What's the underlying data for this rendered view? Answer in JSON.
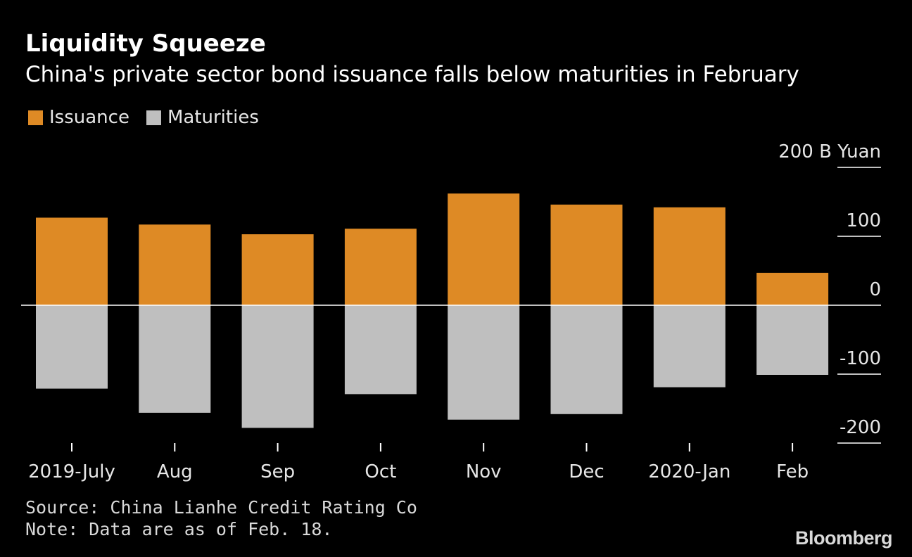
{
  "chart_data": {
    "type": "bar",
    "title": "Liquidity Squeeze",
    "subtitle": "China's private sector bond issuance falls below maturities in February",
    "categories": [
      "2019-July",
      "Aug",
      "Sep",
      "Oct",
      "Nov",
      "Dec",
      "2020-Jan",
      "Feb"
    ],
    "series": [
      {
        "name": "Issuance",
        "color": "#de8a25",
        "values": [
          127,
          117,
          103,
          111,
          162,
          146,
          142,
          47
        ]
      },
      {
        "name": "Maturities",
        "color": "#bfbfbf",
        "values": [
          -121,
          -156,
          -178,
          -129,
          -166,
          -158,
          -119,
          -101
        ]
      }
    ],
    "ylim": [
      -200,
      200
    ],
    "yticks": [
      {
        "value": 200,
        "label": "200 B Yuan"
      },
      {
        "value": 100,
        "label": "100"
      },
      {
        "value": 0,
        "label": "0"
      },
      {
        "value": -100,
        "label": "-100"
      },
      {
        "value": -200,
        "label": "-200"
      }
    ],
    "ytick_at_zero_line": 0,
    "zero_line_color": "#ffffff",
    "legend_position": "top-left"
  },
  "footer": {
    "source": "Source: China Lianhe Credit Rating Co",
    "note": "Note: Data are as of Feb. 18."
  },
  "brand": "Bloomberg"
}
